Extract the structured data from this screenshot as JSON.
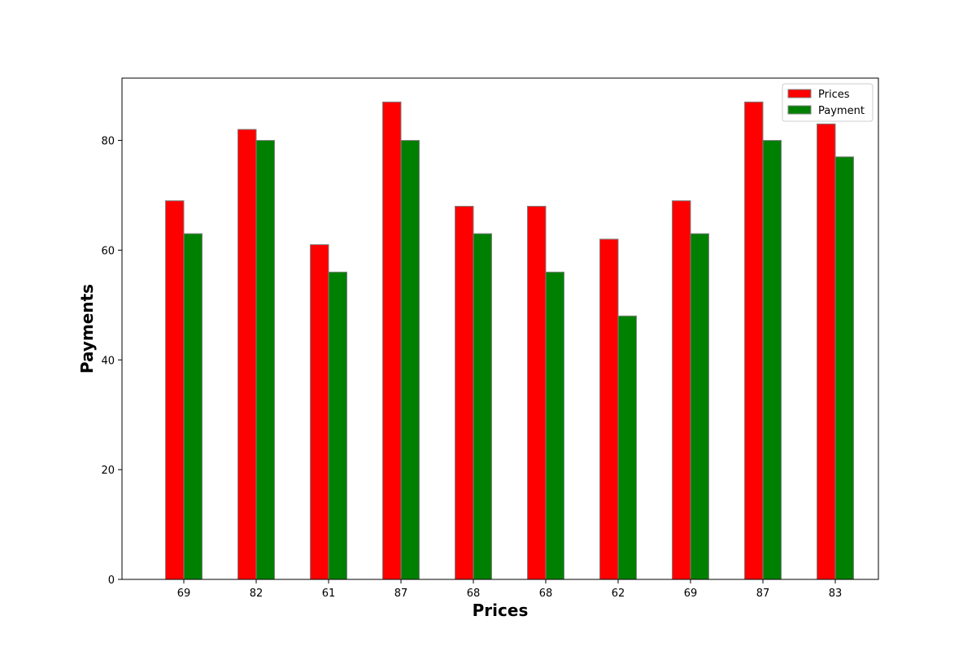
{
  "chart_data": {
    "type": "bar",
    "categories": [
      "69",
      "82",
      "61",
      "87",
      "68",
      "68",
      "62",
      "69",
      "87",
      "83"
    ],
    "series": [
      {
        "name": "Prices",
        "color": "#ff0000",
        "values": [
          69,
          82,
          61,
          87,
          68,
          68,
          62,
          69,
          87,
          83
        ]
      },
      {
        "name": "Payment",
        "color": "#008000",
        "values": [
          63,
          80,
          56,
          80,
          63,
          56,
          48,
          63,
          80,
          77
        ]
      }
    ],
    "title": "",
    "xlabel": "Prices",
    "ylabel": "Payments",
    "ylim": [
      0,
      91.35
    ],
    "yticks": [
      0,
      20,
      40,
      60,
      80
    ],
    "grid": false,
    "legend_position": "top-right",
    "bar_edge_color": "#808080"
  }
}
